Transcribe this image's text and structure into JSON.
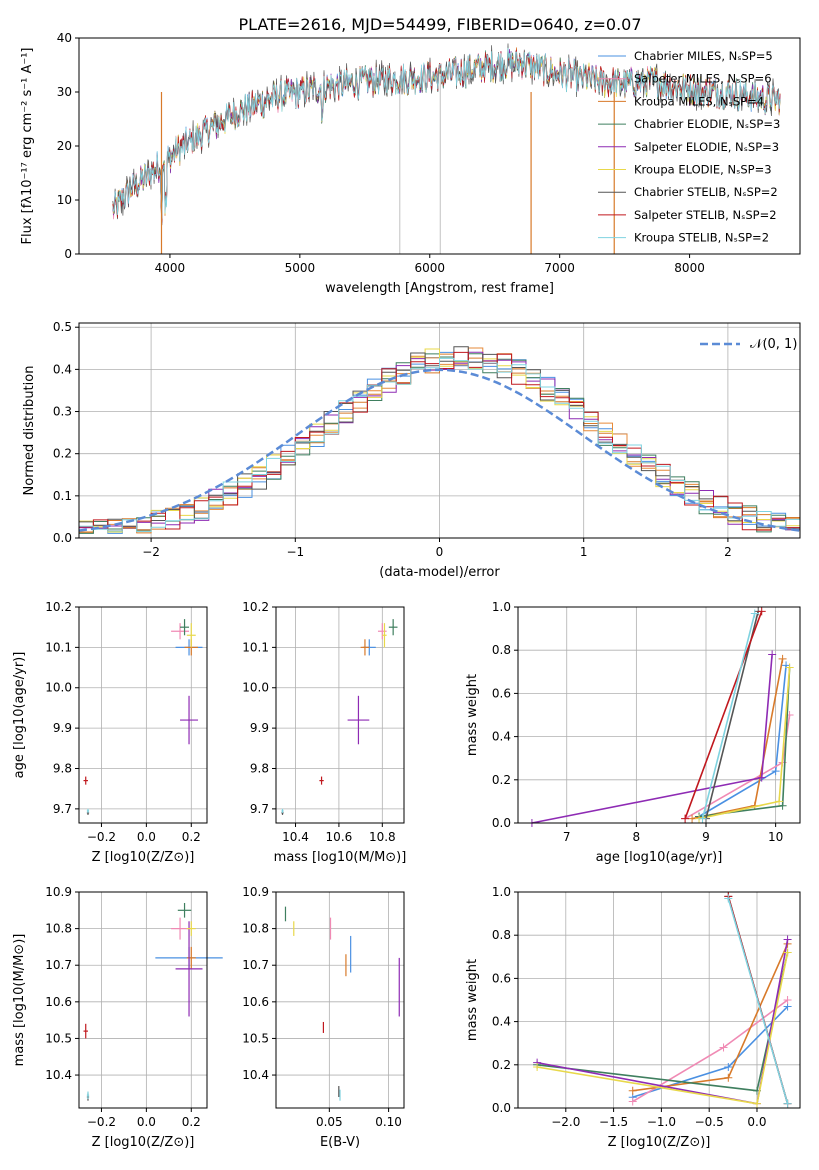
{
  "figure_title": "PLATE=2616, MJD=54499, FIBERID=0640, z=0.07",
  "model_colors": [
    "#4a90e2",
    "#e68a3a",
    "#d87a2a",
    "#3f7f5f",
    "#8e2bb4",
    "#e8d84a",
    "#555555",
    "#c0181e",
    "#7fd3e0"
  ],
  "chart_data": [
    {
      "id": "spectrum",
      "type": "line",
      "title": "PLATE=2616, MJD=54499, FIBERID=0640, z=0.07",
      "xlabel": "wavelength [Angstrom, rest frame]",
      "ylabel": "Flux [fλ10⁻¹⁷ erg cm⁻² s⁻¹ A⁻¹]",
      "xlim": [
        3300,
        8850
      ],
      "ylim": [
        0,
        40
      ],
      "xticks": [
        4000,
        5000,
        6000,
        7000,
        8000
      ],
      "yticks": [
        0,
        10,
        20,
        30,
        40
      ],
      "grid": false,
      "legend_position": "top-right",
      "series": [
        {
          "name": "Chabrier MILES, N_SSP=5",
          "color": "#4a90e2"
        },
        {
          "name": "Salpeter MILES, N_SSP=6",
          "color": "#f08ab4"
        },
        {
          "name": "Kroupa MILES, N_SSP=4",
          "color": "#d87a2a"
        },
        {
          "name": "Chabrier ELODIE, N_SSP=3",
          "color": "#3f7f5f"
        },
        {
          "name": "Salpeter ELODIE, N_SSP=3",
          "color": "#8e2bb4"
        },
        {
          "name": "Kroupa ELODIE, N_SSP=3",
          "color": "#e8d84a"
        },
        {
          "name": "Chabrier STELIB, N_SSP=2",
          "color": "#555555"
        },
        {
          "name": "Salpeter STELIB, N_SSP=2",
          "color": "#c0181e"
        },
        {
          "name": "Kroupa STELIB, N_SSP=2",
          "color": "#7fd3e0"
        }
      ],
      "continuum": {
        "x": [
          3560,
          3700,
          3850,
          3950,
          4100,
          4300,
          4500,
          4800,
          5000,
          5200,
          5500,
          5800,
          6100,
          6300,
          6500,
          6700,
          6900,
          7100,
          7300,
          7500,
          7700,
          7900,
          8100,
          8300,
          8500,
          8700
        ],
        "y": [
          8,
          12,
          15,
          17,
          20,
          23,
          26,
          29,
          30,
          31,
          32,
          32.5,
          33,
          34,
          35,
          35.5,
          34,
          33,
          32,
          31.5,
          32,
          31,
          30,
          30,
          29,
          28.5
        ]
      }
    },
    {
      "id": "residuals",
      "type": "histogram",
      "xlabel": "(data-model)/error",
      "ylabel": "Normed distribution",
      "xlim": [
        -2.5,
        2.5
      ],
      "ylim": [
        0,
        0.51
      ],
      "xticks": [
        -2,
        -1,
        0,
        1,
        2
      ],
      "yticks": [
        0.0,
        0.1,
        0.2,
        0.3,
        0.4,
        0.5
      ],
      "grid": true,
      "legend": "𝒩(0, 1)",
      "legend_position": "top-right",
      "bin_edges_start": -2.5,
      "bin_width": 0.1
    },
    {
      "id": "age-vs-Z",
      "type": "scatter",
      "xlabel": "Z [log10(Z/Z⊙)]",
      "ylabel": "age  [log10(age/yr)]",
      "xlim": [
        -0.3,
        0.27
      ],
      "ylim": [
        9.665,
        10.2
      ],
      "xticks": [
        -0.2,
        0.0,
        0.2
      ],
      "yticks": [
        9.7,
        9.8,
        9.9,
        10.0,
        10.1,
        10.2
      ],
      "grid": true,
      "points": [
        {
          "x": 0.19,
          "y": 10.1,
          "xerr": 0.06,
          "yerr": 0.02,
          "color": "#4a90e2"
        },
        {
          "x": 0.15,
          "y": 10.14,
          "xerr": 0.04,
          "yerr": 0.02,
          "color": "#f08ab4"
        },
        {
          "x": 0.2,
          "y": 10.1,
          "xerr": 0.03,
          "yerr": 0.02,
          "color": "#d87a2a"
        },
        {
          "x": 0.17,
          "y": 10.15,
          "xerr": 0.02,
          "yerr": 0.02,
          "color": "#3f7f5f"
        },
        {
          "x": 0.19,
          "y": 9.92,
          "xerr": 0.04,
          "yerr": 0.06,
          "color": "#8e2bb4"
        },
        {
          "x": 0.2,
          "y": 10.13,
          "xerr": 0.02,
          "yerr": 0.03,
          "color": "#e8d84a"
        },
        {
          "x": -0.26,
          "y": 9.69,
          "xerr": 0.005,
          "yerr": 0.005,
          "color": "#555555"
        },
        {
          "x": -0.27,
          "y": 9.77,
          "xerr": 0.01,
          "yerr": 0.01,
          "color": "#c0181e"
        },
        {
          "x": -0.26,
          "y": 9.695,
          "xerr": 0.005,
          "yerr": 0.005,
          "color": "#7fd3e0"
        }
      ]
    },
    {
      "id": "age-vs-mass",
      "type": "scatter",
      "xlabel": "mass [log10(M/M⊙)]",
      "ylabel": "",
      "xlim": [
        10.31,
        10.9
      ],
      "ylim": [
        9.665,
        10.2
      ],
      "xticks": [
        10.4,
        10.6,
        10.8
      ],
      "yticks": [
        9.7,
        9.8,
        9.9,
        10.0,
        10.1,
        10.2
      ],
      "grid": true,
      "points": [
        {
          "x": 10.74,
          "y": 10.1,
          "xerr": 0.03,
          "yerr": 0.02,
          "color": "#4a90e2"
        },
        {
          "x": 10.8,
          "y": 10.14,
          "xerr": 0.02,
          "yerr": 0.02,
          "color": "#f08ab4"
        },
        {
          "x": 10.72,
          "y": 10.1,
          "xerr": 0.02,
          "yerr": 0.02,
          "color": "#d87a2a"
        },
        {
          "x": 10.85,
          "y": 10.15,
          "xerr": 0.02,
          "yerr": 0.02,
          "color": "#3f7f5f"
        },
        {
          "x": 10.69,
          "y": 9.92,
          "xerr": 0.05,
          "yerr": 0.06,
          "color": "#8e2bb4"
        },
        {
          "x": 10.81,
          "y": 10.13,
          "xerr": 0.01,
          "yerr": 0.03,
          "color": "#e8d84a"
        },
        {
          "x": 10.34,
          "y": 9.69,
          "xerr": 0.005,
          "yerr": 0.005,
          "color": "#555555"
        },
        {
          "x": 10.52,
          "y": 9.77,
          "xerr": 0.01,
          "yerr": 0.01,
          "color": "#c0181e"
        },
        {
          "x": 10.34,
          "y": 9.695,
          "xerr": 0.005,
          "yerr": 0.005,
          "color": "#7fd3e0"
        }
      ]
    },
    {
      "id": "weight-vs-age",
      "type": "line",
      "xlabel": "age  [log10(age/yr)]",
      "ylabel": "mass weight",
      "xlim": [
        6.3,
        10.35
      ],
      "ylim": [
        0,
        1
      ],
      "xticks": [
        7,
        8,
        9,
        10
      ],
      "yticks": [
        0.0,
        0.2,
        0.4,
        0.6,
        0.8,
        1.0
      ],
      "grid": true,
      "series": [
        {
          "color": "#4a90e2",
          "x": [
            8.9,
            10.0,
            10.15
          ],
          "y": [
            0.03,
            0.24,
            0.73
          ]
        },
        {
          "color": "#f08ab4",
          "x": [
            8.7,
            10.1,
            10.2
          ],
          "y": [
            0.02,
            0.28,
            0.5
          ]
        },
        {
          "color": "#d87a2a",
          "x": [
            8.8,
            9.7,
            10.1
          ],
          "y": [
            0.02,
            0.08,
            0.76
          ]
        },
        {
          "color": "#3f7f5f",
          "x": [
            8.9,
            10.1,
            10.2
          ],
          "y": [
            0.03,
            0.08,
            0.72
          ]
        },
        {
          "color": "#8e2bb4",
          "x": [
            6.5,
            9.8,
            9.95
          ],
          "y": [
            0.0,
            0.21,
            0.78
          ]
        },
        {
          "color": "#e8d84a",
          "x": [
            8.9,
            10.05,
            10.2
          ],
          "y": [
            0.02,
            0.1,
            0.72
          ]
        },
        {
          "color": "#555555",
          "x": [
            9.0,
            9.75
          ],
          "y": [
            0.02,
            0.98
          ]
        },
        {
          "color": "#c0181e",
          "x": [
            8.7,
            9.8
          ],
          "y": [
            0.02,
            0.98
          ]
        },
        {
          "color": "#7fd3e0",
          "x": [
            8.95,
            9.7
          ],
          "y": [
            0.02,
            0.97
          ]
        }
      ]
    },
    {
      "id": "mass-vs-Z",
      "type": "scatter",
      "xlabel": "Z [log10(Z/Z⊙)]",
      "ylabel": "mass [log10(M/M⊙)]",
      "xlim": [
        -0.3,
        0.27
      ],
      "ylim": [
        10.31,
        10.9
      ],
      "xticks": [
        -0.2,
        0.0,
        0.2
      ],
      "yticks": [
        10.4,
        10.5,
        10.6,
        10.7,
        10.8,
        10.9
      ],
      "grid": true,
      "points": [
        {
          "x": 0.19,
          "y": 10.72,
          "xerr": 0.15,
          "yerr": 0.03,
          "color": "#4a90e2"
        },
        {
          "x": 0.15,
          "y": 10.8,
          "xerr": 0.04,
          "yerr": 0.03,
          "color": "#f08ab4"
        },
        {
          "x": 0.2,
          "y": 10.72,
          "xerr": 0.02,
          "yerr": 0.03,
          "color": "#d87a2a"
        },
        {
          "x": 0.17,
          "y": 10.85,
          "xerr": 0.03,
          "yerr": 0.02,
          "color": "#3f7f5f"
        },
        {
          "x": 0.19,
          "y": 10.69,
          "xerr": 0.06,
          "yerr": 0.13,
          "color": "#8e2bb4"
        },
        {
          "x": 0.2,
          "y": 10.8,
          "xerr": 0.02,
          "yerr": 0.02,
          "color": "#e8d84a"
        },
        {
          "x": -0.26,
          "y": 10.34,
          "xerr": 0.005,
          "yerr": 0.01,
          "color": "#555555"
        },
        {
          "x": -0.27,
          "y": 10.52,
          "xerr": 0.01,
          "yerr": 0.02,
          "color": "#c0181e"
        },
        {
          "x": -0.26,
          "y": 10.345,
          "xerr": 0.005,
          "yerr": 0.01,
          "color": "#7fd3e0"
        }
      ]
    },
    {
      "id": "mass-vs-ebv",
      "type": "scatter",
      "xlabel": "E(B-V)",
      "ylabel": "",
      "xlim": [
        0.005,
        0.113
      ],
      "ylim": [
        10.31,
        10.9
      ],
      "xticks": [
        0.05,
        0.1
      ],
      "yticks": [
        10.4,
        10.5,
        10.6,
        10.7,
        10.8,
        10.9
      ],
      "grid": true,
      "points": [
        {
          "x": 0.068,
          "y": 10.73,
          "xerr": 0.0,
          "yerr": 0.05,
          "color": "#4a90e2"
        },
        {
          "x": 0.051,
          "y": 10.8,
          "xerr": 0.0,
          "yerr": 0.03,
          "color": "#f08ab4"
        },
        {
          "x": 0.064,
          "y": 10.7,
          "xerr": 0.0,
          "yerr": 0.03,
          "color": "#d87a2a"
        },
        {
          "x": 0.013,
          "y": 10.84,
          "xerr": 0.0,
          "yerr": 0.02,
          "color": "#3f7f5f"
        },
        {
          "x": 0.109,
          "y": 10.64,
          "xerr": 0.0,
          "yerr": 0.08,
          "color": "#8e2bb4"
        },
        {
          "x": 0.02,
          "y": 10.8,
          "xerr": 0.0,
          "yerr": 0.02,
          "color": "#e8d84a"
        },
        {
          "x": 0.058,
          "y": 10.355,
          "xerr": 0.0,
          "yerr": 0.015,
          "color": "#555555"
        },
        {
          "x": 0.045,
          "y": 10.53,
          "xerr": 0.0,
          "yerr": 0.015,
          "color": "#c0181e"
        },
        {
          "x": 0.059,
          "y": 10.345,
          "xerr": 0.0,
          "yerr": 0.015,
          "color": "#7fd3e0"
        }
      ]
    },
    {
      "id": "weight-vs-Z",
      "type": "line",
      "xlabel": "Z [log10(Z/Z⊙)]",
      "ylabel": "mass weight",
      "xlim": [
        -2.5,
        0.45
      ],
      "ylim": [
        0,
        1
      ],
      "xticks": [
        -2.0,
        -1.5,
        -1.0,
        -0.5,
        0.0
      ],
      "yticks": [
        0.0,
        0.2,
        0.4,
        0.6,
        0.8,
        1.0
      ],
      "grid": true,
      "series": [
        {
          "color": "#4a90e2",
          "x": [
            -1.3,
            -0.3,
            0.32
          ],
          "y": [
            0.05,
            0.19,
            0.47
          ]
        },
        {
          "color": "#f08ab4",
          "x": [
            -1.3,
            -0.35,
            0.32
          ],
          "y": [
            0.03,
            0.28,
            0.5
          ]
        },
        {
          "color": "#d87a2a",
          "x": [
            -1.3,
            -0.3,
            0.32
          ],
          "y": [
            0.08,
            0.14,
            0.76
          ]
        },
        {
          "color": "#3f7f5f",
          "x": [
            -2.3,
            0.0,
            0.32
          ],
          "y": [
            0.2,
            0.08,
            0.72
          ]
        },
        {
          "color": "#8e2bb4",
          "x": [
            -2.3,
            0.0,
            0.32
          ],
          "y": [
            0.21,
            0.02,
            0.78
          ]
        },
        {
          "color": "#e8d84a",
          "x": [
            -2.3,
            0.0,
            0.32
          ],
          "y": [
            0.19,
            0.02,
            0.72
          ]
        },
        {
          "color": "#555555",
          "x": [
            -0.3,
            0.32
          ],
          "y": [
            0.98,
            0.02
          ]
        },
        {
          "color": "#c0181e",
          "x": [
            -0.3,
            0.32
          ],
          "y": [
            0.98,
            0.02
          ]
        },
        {
          "color": "#7fd3e0",
          "x": [
            -0.3,
            0.32
          ],
          "y": [
            0.97,
            0.02
          ]
        }
      ]
    }
  ]
}
